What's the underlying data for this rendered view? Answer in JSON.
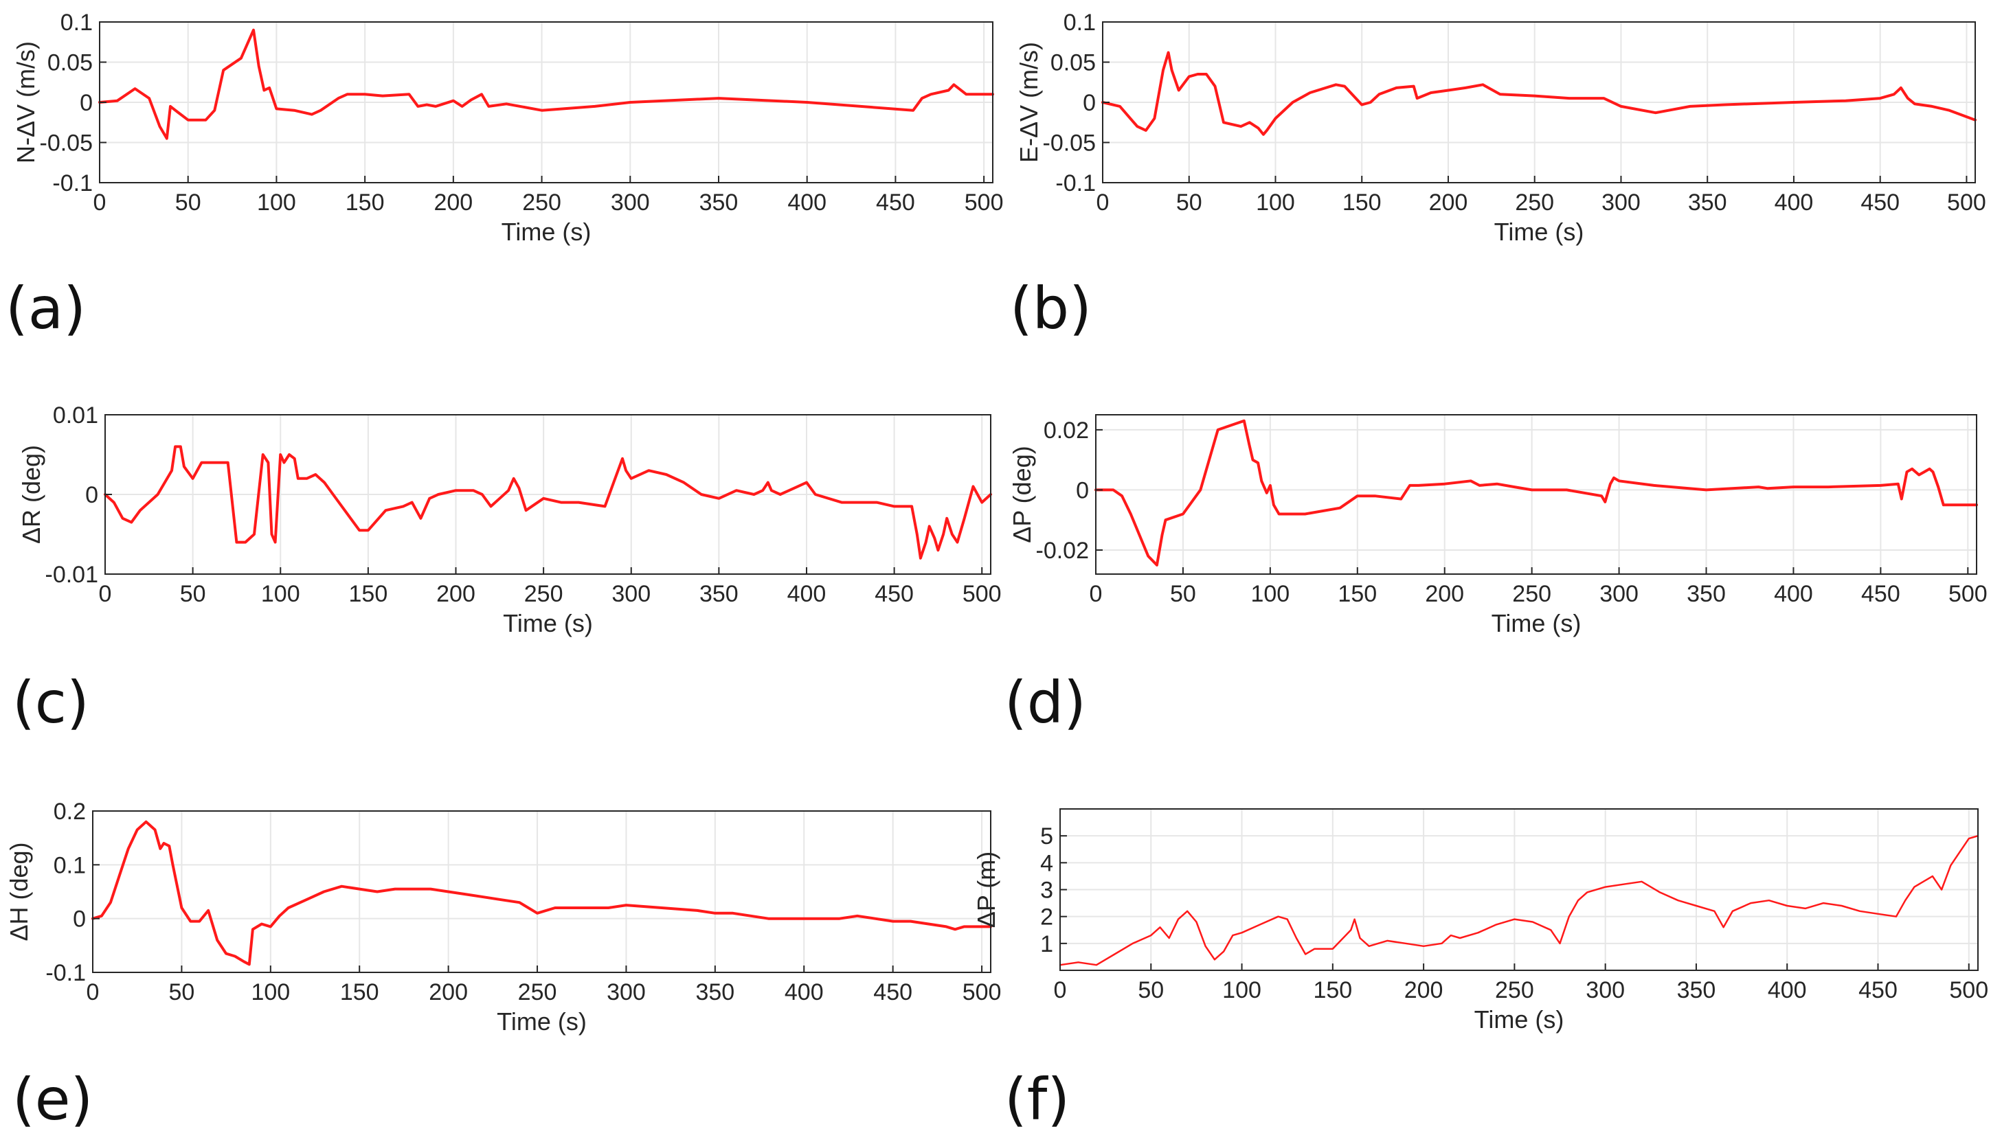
{
  "figure": {
    "line_color": "#ff1a1a"
  },
  "chart_data": [
    {
      "id": "a",
      "type": "line",
      "panel_label": "(a)",
      "xlabel": "Time (s)",
      "ylabel": "N-ΔV (m/s)",
      "xlim": [
        0,
        505
      ],
      "ylim": [
        -0.1,
        0.1
      ],
      "grid": true,
      "legend": "none",
      "xticks": [
        0,
        50,
        100,
        150,
        200,
        250,
        300,
        350,
        400,
        450,
        500
      ],
      "xtick_labels": [
        "0",
        "50",
        "100",
        "150",
        "200",
        "250",
        "300",
        "350",
        "400",
        "450",
        "500"
      ],
      "yticks": [
        -0.1,
        -0.05,
        0,
        0.05,
        0.1
      ],
      "ytick_labels": [
        "-0.1",
        "-0.05",
        "0",
        "0.05",
        "0.1"
      ],
      "series": [
        {
          "name": "N-ΔV",
          "x": [
            0,
            10,
            20,
            28,
            34,
            38,
            40,
            44,
            50,
            60,
            65,
            70,
            80,
            85,
            87,
            90,
            93,
            96,
            100,
            110,
            120,
            125,
            135,
            140,
            150,
            160,
            175,
            180,
            185,
            190,
            200,
            205,
            210,
            216,
            220,
            230,
            250,
            280,
            300,
            350,
            400,
            460,
            465,
            470,
            480,
            483,
            490,
            505
          ],
          "y": [
            0,
            0.002,
            0.017,
            0.005,
            -0.03,
            -0.045,
            -0.005,
            -0.012,
            -0.022,
            -0.022,
            -0.01,
            0.04,
            0.055,
            0.08,
            0.09,
            0.045,
            0.015,
            0.018,
            -0.008,
            -0.01,
            -0.015,
            -0.01,
            0.005,
            0.01,
            0.01,
            0.008,
            0.01,
            -0.005,
            -0.003,
            -0.005,
            0.002,
            -0.005,
            0.003,
            0.01,
            -0.005,
            -0.002,
            -0.01,
            -0.005,
            0,
            0.005,
            0,
            -0.01,
            0.005,
            0.01,
            0.015,
            0.022,
            0.01,
            0.01
          ]
        }
      ]
    },
    {
      "id": "b",
      "type": "line",
      "panel_label": "(b)",
      "xlabel": "Time (s)",
      "ylabel": "E-ΔV (m/s)",
      "xlim": [
        0,
        505
      ],
      "ylim": [
        -0.1,
        0.1
      ],
      "grid": true,
      "legend": "none",
      "xticks": [
        0,
        50,
        100,
        150,
        200,
        250,
        300,
        350,
        400,
        450,
        500
      ],
      "xtick_labels": [
        "0",
        "50",
        "100",
        "150",
        "200",
        "250",
        "300",
        "350",
        "400",
        "450",
        "500"
      ],
      "yticks": [
        -0.1,
        -0.05,
        0,
        0.05,
        0.1
      ],
      "ytick_labels": [
        "-0.1",
        "-0.05",
        "0",
        "0.05",
        "0.1"
      ],
      "series": [
        {
          "name": "E-ΔV",
          "x": [
            0,
            10,
            20,
            25,
            30,
            35,
            38,
            40,
            44,
            50,
            55,
            60,
            65,
            70,
            80,
            85,
            90,
            93,
            95,
            100,
            110,
            120,
            135,
            140,
            150,
            155,
            160,
            170,
            180,
            182,
            190,
            200,
            210,
            220,
            230,
            250,
            270,
            290,
            300,
            320,
            340,
            360,
            400,
            430,
            450,
            458,
            462,
            466,
            470,
            480,
            490,
            505
          ],
          "y": [
            0,
            -0.005,
            -0.03,
            -0.035,
            -0.02,
            0.04,
            0.062,
            0.04,
            0.015,
            0.032,
            0.035,
            0.035,
            0.02,
            -0.025,
            -0.03,
            -0.025,
            -0.032,
            -0.04,
            -0.035,
            -0.02,
            0,
            0.012,
            0.022,
            0.02,
            -0.003,
            0,
            0.01,
            0.018,
            0.02,
            0.005,
            0.012,
            0.015,
            0.018,
            0.022,
            0.01,
            0.008,
            0.005,
            0.005,
            -0.005,
            -0.013,
            -0.005,
            -0.003,
            0,
            0.002,
            0.005,
            0.01,
            0.018,
            0.005,
            -0.002,
            -0.005,
            -0.01,
            -0.022
          ]
        }
      ]
    },
    {
      "id": "c",
      "type": "line",
      "panel_label": "(c)",
      "xlabel": "Time (s)",
      "ylabel": "ΔR (deg)",
      "xlim": [
        0,
        505
      ],
      "ylim": [
        -0.01,
        0.01
      ],
      "grid": true,
      "legend": "none",
      "xticks": [
        0,
        50,
        100,
        150,
        200,
        250,
        300,
        350,
        400,
        450,
        500
      ],
      "xtick_labels": [
        "0",
        "50",
        "100",
        "150",
        "200",
        "250",
        "300",
        "350",
        "400",
        "450",
        "500"
      ],
      "yticks": [
        -0.01,
        0,
        0.01
      ],
      "ytick_labels": [
        "-0.01",
        "0",
        "0.01"
      ],
      "series": [
        {
          "name": "ΔR",
          "x": [
            0,
            5,
            10,
            15,
            20,
            30,
            38,
            40,
            43,
            45,
            50,
            55,
            60,
            65,
            70,
            75,
            80,
            85,
            90,
            93,
            95,
            97,
            100,
            102,
            105,
            108,
            110,
            115,
            120,
            125,
            130,
            140,
            145,
            150,
            160,
            170,
            175,
            180,
            185,
            190,
            200,
            210,
            215,
            220,
            225,
            230,
            233,
            236,
            240,
            250,
            260,
            270,
            285,
            290,
            295,
            297,
            300,
            310,
            320,
            330,
            340,
            350,
            360,
            370,
            375,
            378,
            380,
            385,
            390,
            395,
            400,
            405,
            420,
            440,
            450,
            460,
            463,
            465,
            468,
            470,
            473,
            475,
            478,
            480,
            483,
            486,
            490,
            495,
            500,
            505
          ],
          "y": [
            0,
            -0.001,
            -0.003,
            -0.0035,
            -0.002,
            0,
            0.003,
            0.006,
            0.006,
            0.0035,
            0.002,
            0.004,
            0.004,
            0.004,
            0.004,
            -0.006,
            -0.006,
            -0.005,
            0.005,
            0.004,
            -0.005,
            -0.006,
            0.005,
            0.004,
            0.005,
            0.0045,
            0.002,
            0.002,
            0.0025,
            0.0015,
            0,
            -0.003,
            -0.0045,
            -0.0045,
            -0.002,
            -0.0015,
            -0.001,
            -0.003,
            -0.0005,
            0,
            0.0005,
            0.0005,
            0,
            -0.0015,
            -0.0005,
            0.0005,
            0.002,
            0.0008,
            -0.002,
            -0.0005,
            -0.001,
            -0.001,
            -0.0015,
            0.0015,
            0.0045,
            0.003,
            0.002,
            0.003,
            0.0025,
            0.0015,
            0,
            -0.0005,
            0.0005,
            0,
            0.0005,
            0.0015,
            0.0005,
            0,
            0.0005,
            0.001,
            0.0015,
            0,
            -0.001,
            -0.001,
            -0.0015,
            -0.0015,
            -0.005,
            -0.008,
            -0.006,
            -0.004,
            -0.0055,
            -0.007,
            -0.005,
            -0.003,
            -0.005,
            -0.006,
            -0.003,
            0.001,
            -0.001,
            0
          ]
        }
      ]
    },
    {
      "id": "d",
      "type": "line",
      "panel_label": "(d)",
      "xlabel": "Time (s)",
      "ylabel": "ΔP (deg)",
      "xlim": [
        0,
        505
      ],
      "ylim": [
        -0.028,
        0.025
      ],
      "grid": true,
      "legend": "none",
      "xticks": [
        0,
        50,
        100,
        150,
        200,
        250,
        300,
        350,
        400,
        450,
        500
      ],
      "xtick_labels": [
        "0",
        "50",
        "100",
        "150",
        "200",
        "250",
        "300",
        "350",
        "400",
        "450",
        "500"
      ],
      "yticks": [
        -0.02,
        0,
        0.02
      ],
      "ytick_labels": [
        "-0.02",
        "0",
        "0.02"
      ],
      "series": [
        {
          "name": "ΔP",
          "x": [
            0,
            10,
            15,
            20,
            25,
            30,
            35,
            38,
            40,
            50,
            60,
            70,
            75,
            80,
            85,
            88,
            90,
            93,
            95,
            98,
            100,
            102,
            105,
            110,
            120,
            140,
            150,
            160,
            175,
            180,
            185,
            200,
            215,
            220,
            230,
            240,
            250,
            270,
            290,
            292,
            295,
            297,
            300,
            320,
            350,
            380,
            385,
            400,
            420,
            450,
            460,
            462,
            465,
            468,
            472,
            475,
            478,
            480,
            483,
            486,
            490,
            505
          ],
          "y": [
            0,
            0,
            -0.002,
            -0.008,
            -0.015,
            -0.022,
            -0.025,
            -0.015,
            -0.01,
            -0.008,
            0,
            0.02,
            0.021,
            0.022,
            0.023,
            0.015,
            0.01,
            0.009,
            0.003,
            -0.001,
            0.0015,
            -0.005,
            -0.008,
            -0.008,
            -0.008,
            -0.006,
            -0.002,
            -0.002,
            -0.003,
            0.0015,
            0.0015,
            0.002,
            0.003,
            0.0015,
            0.002,
            0.001,
            0,
            0,
            -0.002,
            -0.004,
            0.002,
            0.004,
            0.003,
            0.0015,
            0,
            0.001,
            0.0005,
            0.001,
            0.001,
            0.0015,
            0.002,
            -0.003,
            0.006,
            0.007,
            0.005,
            0.006,
            0.007,
            0.006,
            0.001,
            -0.005,
            -0.005,
            -0.005
          ]
        }
      ]
    },
    {
      "id": "e",
      "type": "line",
      "panel_label": "(e)",
      "xlabel": "Time (s)",
      "ylabel": "ΔH (deg)",
      "xlim": [
        0,
        505
      ],
      "ylim": [
        -0.1,
        0.2
      ],
      "grid": true,
      "legend": "none",
      "xticks": [
        0,
        50,
        100,
        150,
        200,
        250,
        300,
        350,
        400,
        450,
        500
      ],
      "xtick_labels": [
        "0",
        "50",
        "100",
        "150",
        "200",
        "250",
        "300",
        "350",
        "400",
        "450",
        "500"
      ],
      "yticks": [
        -0.1,
        0,
        0.1,
        0.2
      ],
      "ytick_labels": [
        "-0.1",
        "0",
        "0.1",
        "0.2"
      ],
      "series": [
        {
          "name": "ΔH",
          "x": [
            0,
            5,
            10,
            15,
            20,
            25,
            30,
            35,
            38,
            40,
            43,
            45,
            50,
            55,
            60,
            65,
            70,
            75,
            80,
            85,
            88,
            90,
            95,
            100,
            105,
            110,
            120,
            130,
            140,
            150,
            160,
            170,
            180,
            190,
            200,
            210,
            220,
            230,
            240,
            250,
            260,
            270,
            290,
            300,
            320,
            340,
            350,
            360,
            380,
            400,
            420,
            430,
            440,
            450,
            460,
            470,
            480,
            485,
            490,
            505
          ],
          "y": [
            0,
            0.005,
            0.03,
            0.08,
            0.13,
            0.165,
            0.18,
            0.165,
            0.13,
            0.14,
            0.135,
            0.1,
            0.02,
            -0.005,
            -0.005,
            0.015,
            -0.04,
            -0.065,
            -0.07,
            -0.08,
            -0.085,
            -0.02,
            -0.01,
            -0.015,
            0.005,
            0.02,
            0.035,
            0.05,
            0.06,
            0.055,
            0.05,
            0.055,
            0.055,
            0.055,
            0.05,
            0.045,
            0.04,
            0.035,
            0.03,
            0.01,
            0.02,
            0.02,
            0.02,
            0.025,
            0.02,
            0.015,
            0.01,
            0.01,
            0,
            0,
            0,
            0.005,
            0,
            -0.005,
            -0.005,
            -0.01,
            -0.015,
            -0.02,
            -0.015,
            -0.015
          ]
        }
      ]
    },
    {
      "id": "f",
      "type": "line",
      "panel_label": "(f)",
      "xlabel": "Time (s)",
      "ylabel": "ΔP (m)",
      "xlim": [
        0,
        505
      ],
      "ylim": [
        0,
        6
      ],
      "grid": true,
      "legend": "none",
      "xticks": [
        0,
        50,
        100,
        150,
        200,
        250,
        300,
        350,
        400,
        450,
        500
      ],
      "xtick_labels": [
        "0",
        "50",
        "100",
        "150",
        "200",
        "250",
        "300",
        "350",
        "400",
        "450",
        "500"
      ],
      "yticks": [
        1,
        2,
        3,
        4,
        5
      ],
      "ytick_labels": [
        "1",
        "2",
        "3",
        "4",
        "5"
      ],
      "series": [
        {
          "name": "ΔP",
          "x": [
            0,
            10,
            20,
            30,
            40,
            50,
            55,
            60,
            65,
            70,
            75,
            80,
            85,
            90,
            95,
            100,
            110,
            120,
            125,
            130,
            135,
            140,
            150,
            160,
            162,
            165,
            170,
            180,
            190,
            200,
            210,
            215,
            220,
            230,
            240,
            250,
            260,
            270,
            275,
            280,
            285,
            290,
            300,
            310,
            320,
            330,
            340,
            350,
            360,
            365,
            370,
            380,
            390,
            400,
            410,
            420,
            430,
            440,
            450,
            460,
            465,
            470,
            480,
            485,
            490,
            495,
            500,
            505
          ],
          "y": [
            0.2,
            0.3,
            0.2,
            0.6,
            1.0,
            1.3,
            1.6,
            1.2,
            1.9,
            2.2,
            1.8,
            0.9,
            0.4,
            0.7,
            1.3,
            1.4,
            1.7,
            2.0,
            1.9,
            1.2,
            0.6,
            0.8,
            0.8,
            1.5,
            1.9,
            1.2,
            0.9,
            1.1,
            1.0,
            0.9,
            1.0,
            1.3,
            1.2,
            1.4,
            1.7,
            1.9,
            1.8,
            1.5,
            1.0,
            2.0,
            2.6,
            2.9,
            3.1,
            3.2,
            3.3,
            2.9,
            2.6,
            2.4,
            2.2,
            1.6,
            2.2,
            2.5,
            2.6,
            2.4,
            2.3,
            2.5,
            2.4,
            2.2,
            2.1,
            2.0,
            2.6,
            3.1,
            3.5,
            3.0,
            3.9,
            4.4,
            4.9,
            5.0
          ]
        }
      ]
    }
  ]
}
